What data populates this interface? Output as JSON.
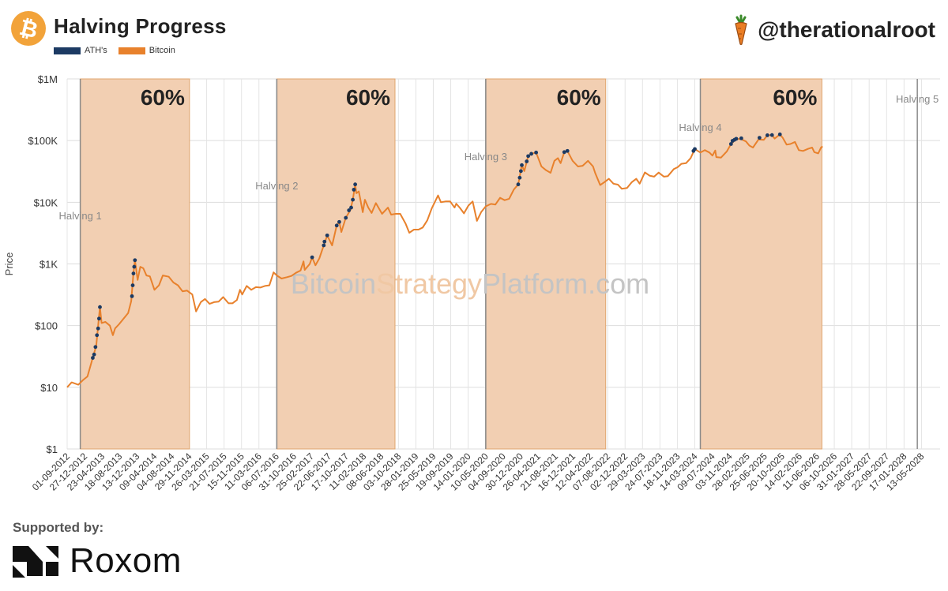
{
  "header": {
    "title": "Halving Progress",
    "logo_glyph": "₿",
    "handle": "@therationalroot"
  },
  "footer": {
    "supported_label": "Supported by:",
    "sponsor_name": "Roxom"
  },
  "colors": {
    "bitcoin": "#e8812c",
    "ath": "#1c3a63",
    "shade": "#f2cfb2",
    "shade_border": "#e0a56e",
    "watermark_gray": "#c4c4c4",
    "watermark_orange": "#f0c8a4"
  },
  "chart_data": {
    "type": "line",
    "title": "",
    "xlabel": "",
    "ylabel": "Price",
    "y_scale": "log",
    "ylim": [
      1,
      1000000
    ],
    "xlim": [
      "2012-09-01",
      "2028-09-15"
    ],
    "yticks": [
      "$1",
      "$10",
      "$100",
      "$1K",
      "$10K",
      "$100K",
      "$1M"
    ],
    "xticks": [
      "01-09-2012",
      "27-12-2012",
      "23-04-2013",
      "18-08-2013",
      "13-12-2013",
      "09-04-2014",
      "04-08-2014",
      "29-11-2014",
      "26-03-2015",
      "21-07-2015",
      "15-11-2015",
      "11-03-2016",
      "06-07-2016",
      "31-10-2016",
      "25-02-2017",
      "22-06-2017",
      "17-10-2017",
      "11-02-2018",
      "08-06-2018",
      "03-10-2018",
      "28-01-2019",
      "25-05-2019",
      "19-09-2019",
      "14-01-2020",
      "10-05-2020",
      "04-09-2020",
      "30-12-2020",
      "26-04-2021",
      "21-08-2021",
      "16-12-2021",
      "12-04-2022",
      "07-08-2022",
      "02-12-2022",
      "29-03-2023",
      "24-07-2023",
      "18-11-2023",
      "14-03-2024",
      "09-07-2024",
      "03-11-2024",
      "28-02-2025",
      "25-06-2025",
      "20-10-2025",
      "14-02-2026",
      "11-06-2026",
      "06-10-2026",
      "31-01-2027",
      "28-05-2027",
      "22-09-2027",
      "17-01-2028",
      "13-05-2028"
    ],
    "legend": [
      "ATH's",
      "Bitcoin"
    ],
    "legend_position": "top-left",
    "grid": true,
    "watermark": {
      "part1": "Bitcoin",
      "part2": "Strategy",
      "part3": "Platform.com"
    },
    "halvings": [
      {
        "label": "Halving 1",
        "date": "2012-11-28"
      },
      {
        "label": "Halving 2",
        "date": "2016-07-09"
      },
      {
        "label": "Halving 3",
        "date": "2020-05-11"
      },
      {
        "label": "Halving 4",
        "date": "2024-04-20"
      },
      {
        "label": "Halving 5",
        "date": "2028-04-15"
      }
    ],
    "shaded_regions": [
      {
        "start": "2012-11-28",
        "end": "2014-12-01",
        "label": "60%"
      },
      {
        "start": "2016-07-09",
        "end": "2018-09-10",
        "label": "60%"
      },
      {
        "start": "2020-05-11",
        "end": "2022-07-25",
        "label": "60%"
      },
      {
        "start": "2024-04-20",
        "end": "2026-07-15",
        "label": "60%"
      }
    ],
    "series": [
      {
        "name": "Bitcoin",
        "points": [
          [
            "2012-09-01",
            10
          ],
          [
            "2012-10-01",
            12
          ],
          [
            "2012-11-15",
            11
          ],
          [
            "2012-12-15",
            13
          ],
          [
            "2013-01-15",
            15
          ],
          [
            "2013-02-20",
            30
          ],
          [
            "2013-03-15",
            47
          ],
          [
            "2013-04-09",
            200
          ],
          [
            "2013-04-20",
            110
          ],
          [
            "2013-05-15",
            115
          ],
          [
            "2013-06-15",
            100
          ],
          [
            "2013-07-05",
            70
          ],
          [
            "2013-07-20",
            90
          ],
          [
            "2013-08-15",
            105
          ],
          [
            "2013-09-15",
            130
          ],
          [
            "2013-10-15",
            160
          ],
          [
            "2013-11-05",
            250
          ],
          [
            "2013-11-20",
            700
          ],
          [
            "2013-11-30",
            1150
          ],
          [
            "2013-12-18",
            550
          ],
          [
            "2014-01-05",
            900
          ],
          [
            "2014-01-25",
            850
          ],
          [
            "2014-02-15",
            650
          ],
          [
            "2014-03-10",
            630
          ],
          [
            "2014-04-10",
            380
          ],
          [
            "2014-05-10",
            450
          ],
          [
            "2014-06-05",
            650
          ],
          [
            "2014-07-15",
            620
          ],
          [
            "2014-08-15",
            500
          ],
          [
            "2014-09-15",
            450
          ],
          [
            "2014-10-15",
            360
          ],
          [
            "2014-11-15",
            370
          ],
          [
            "2014-12-20",
            320
          ],
          [
            "2015-01-14",
            170
          ],
          [
            "2015-02-15",
            240
          ],
          [
            "2015-03-15",
            270
          ],
          [
            "2015-04-15",
            225
          ],
          [
            "2015-05-15",
            240
          ],
          [
            "2015-06-15",
            245
          ],
          [
            "2015-07-15",
            290
          ],
          [
            "2015-08-20",
            230
          ],
          [
            "2015-09-15",
            230
          ],
          [
            "2015-10-15",
            260
          ],
          [
            "2015-11-05",
            380
          ],
          [
            "2015-11-20",
            320
          ],
          [
            "2015-12-20",
            440
          ],
          [
            "2016-01-20",
            380
          ],
          [
            "2016-02-20",
            420
          ],
          [
            "2016-03-20",
            415
          ],
          [
            "2016-04-20",
            440
          ],
          [
            "2016-05-20",
            450
          ],
          [
            "2016-06-17",
            730
          ],
          [
            "2016-07-09",
            650
          ],
          [
            "2016-08-10",
            580
          ],
          [
            "2016-09-15",
            610
          ],
          [
            "2016-10-15",
            640
          ],
          [
            "2016-11-15",
            720
          ],
          [
            "2016-12-15",
            780
          ],
          [
            "2017-01-04",
            1100
          ],
          [
            "2017-01-12",
            800
          ],
          [
            "2017-02-15",
            1000
          ],
          [
            "2017-03-03",
            1280
          ],
          [
            "2017-03-25",
            950
          ],
          [
            "2017-04-20",
            1230
          ],
          [
            "2017-05-20",
            2000
          ],
          [
            "2017-06-12",
            2900
          ],
          [
            "2017-07-15",
            2000
          ],
          [
            "2017-08-15",
            4200
          ],
          [
            "2017-09-01",
            4800
          ],
          [
            "2017-09-15",
            3300
          ],
          [
            "2017-10-15",
            5600
          ],
          [
            "2017-11-15",
            7500
          ],
          [
            "2017-12-01",
            11000
          ],
          [
            "2017-12-17",
            19500
          ],
          [
            "2017-12-25",
            14000
          ],
          [
            "2018-01-10",
            15000
          ],
          [
            "2018-02-06",
            6900
          ],
          [
            "2018-02-20",
            11000
          ],
          [
            "2018-03-15",
            8200
          ],
          [
            "2018-04-06",
            6700
          ],
          [
            "2018-05-05",
            9700
          ],
          [
            "2018-06-15",
            6500
          ],
          [
            "2018-07-25",
            8200
          ],
          [
            "2018-08-15",
            6300
          ],
          [
            "2018-09-15",
            6500
          ],
          [
            "2018-10-15",
            6500
          ],
          [
            "2018-11-20",
            4500
          ],
          [
            "2018-12-15",
            3200
          ],
          [
            "2019-01-15",
            3600
          ],
          [
            "2019-02-15",
            3600
          ],
          [
            "2019-03-15",
            3900
          ],
          [
            "2019-04-15",
            5100
          ],
          [
            "2019-05-15",
            8000
          ],
          [
            "2019-06-26",
            12900
          ],
          [
            "2019-07-15",
            10000
          ],
          [
            "2019-08-15",
            10300
          ],
          [
            "2019-09-15",
            10300
          ],
          [
            "2019-10-15",
            8200
          ],
          [
            "2019-10-26",
            9500
          ],
          [
            "2019-11-20",
            8100
          ],
          [
            "2019-12-17",
            6600
          ],
          [
            "2020-01-15",
            8800
          ],
          [
            "2020-02-13",
            10300
          ],
          [
            "2020-03-13",
            5000
          ],
          [
            "2020-04-10",
            6900
          ],
          [
            "2020-05-11",
            8600
          ],
          [
            "2020-06-15",
            9400
          ],
          [
            "2020-07-15",
            9200
          ],
          [
            "2020-08-15",
            11800
          ],
          [
            "2020-09-15",
            10800
          ],
          [
            "2020-10-15",
            11400
          ],
          [
            "2020-11-15",
            16000
          ],
          [
            "2020-12-15",
            19500
          ],
          [
            "2021-01-08",
            40000
          ],
          [
            "2021-01-25",
            32000
          ],
          [
            "2021-02-20",
            56000
          ],
          [
            "2021-03-13",
            61000
          ],
          [
            "2021-04-14",
            64000
          ],
          [
            "2021-05-20",
            38000
          ],
          [
            "2021-06-20",
            33000
          ],
          [
            "2021-07-20",
            30000
          ],
          [
            "2021-08-15",
            47000
          ],
          [
            "2021-09-07",
            52000
          ],
          [
            "2021-09-25",
            43000
          ],
          [
            "2021-10-20",
            65000
          ],
          [
            "2021-11-10",
            68000
          ],
          [
            "2021-12-15",
            47000
          ],
          [
            "2022-01-20",
            38000
          ],
          [
            "2022-02-20",
            39000
          ],
          [
            "2022-03-28",
            47000
          ],
          [
            "2022-05-01",
            38000
          ],
          [
            "2022-05-15",
            30000
          ],
          [
            "2022-06-18",
            19000
          ],
          [
            "2022-07-15",
            21000
          ],
          [
            "2022-08-15",
            24000
          ],
          [
            "2022-09-15",
            20000
          ],
          [
            "2022-10-15",
            19300
          ],
          [
            "2022-11-10",
            16500
          ],
          [
            "2022-12-15",
            17000
          ],
          [
            "2023-01-15",
            21000
          ],
          [
            "2023-02-15",
            24000
          ],
          [
            "2023-03-10",
            20000
          ],
          [
            "2023-04-14",
            30500
          ],
          [
            "2023-05-15",
            27000
          ],
          [
            "2023-06-15",
            26000
          ],
          [
            "2023-07-15",
            30300
          ],
          [
            "2023-08-20",
            26000
          ],
          [
            "2023-09-15",
            26500
          ],
          [
            "2023-10-25",
            34500
          ],
          [
            "2023-11-20",
            37000
          ],
          [
            "2023-12-15",
            42000
          ],
          [
            "2024-01-15",
            43000
          ],
          [
            "2024-02-15",
            52000
          ],
          [
            "2024-03-14",
            73000
          ],
          [
            "2024-04-20",
            64000
          ],
          [
            "2024-05-20",
            70000
          ],
          [
            "2024-06-20",
            64000
          ],
          [
            "2024-07-10",
            57000
          ],
          [
            "2024-07-29",
            69000
          ],
          [
            "2024-08-05",
            54000
          ],
          [
            "2024-09-06",
            53000
          ],
          [
            "2024-10-15",
            67000
          ],
          [
            "2024-11-12",
            88000
          ],
          [
            "2024-12-17",
            107000
          ],
          [
            "2025-01-20",
            105000
          ],
          [
            "2025-02-20",
            97000
          ],
          [
            "2025-03-15",
            83000
          ],
          [
            "2025-04-08",
            77000
          ],
          [
            "2025-05-15",
            104000
          ],
          [
            "2025-06-20",
            103000
          ],
          [
            "2025-07-14",
            122000
          ],
          [
            "2025-08-14",
            123000
          ],
          [
            "2025-09-01",
            108000
          ],
          [
            "2025-10-06",
            126000
          ],
          [
            "2025-10-25",
            111000
          ],
          [
            "2025-11-20",
            86000
          ],
          [
            "2025-12-15",
            88000
          ],
          [
            "2026-01-15",
            95000
          ],
          [
            "2026-02-10",
            70000
          ],
          [
            "2026-03-10",
            68000
          ],
          [
            "2026-04-15",
            74000
          ],
          [
            "2026-05-10",
            77000
          ],
          [
            "2026-05-25",
            65000
          ],
          [
            "2026-06-20",
            62000
          ],
          [
            "2026-07-10",
            78000
          ],
          [
            "2026-07-20",
            80000
          ]
        ]
      },
      {
        "name": "ATH's",
        "points": [
          [
            "2013-02-20",
            30
          ],
          [
            "2013-03-01",
            34
          ],
          [
            "2013-03-10",
            45
          ],
          [
            "2013-03-20",
            70
          ],
          [
            "2013-03-28",
            90
          ],
          [
            "2013-04-03",
            130
          ],
          [
            "2013-04-09",
            200
          ],
          [
            "2013-11-10",
            300
          ],
          [
            "2013-11-15",
            450
          ],
          [
            "2013-11-20",
            700
          ],
          [
            "2013-11-25",
            900
          ],
          [
            "2013-11-30",
            1150
          ],
          [
            "2017-03-03",
            1280
          ],
          [
            "2017-05-20",
            2000
          ],
          [
            "2017-05-25",
            2300
          ],
          [
            "2017-06-12",
            2900
          ],
          [
            "2017-08-15",
            4200
          ],
          [
            "2017-09-01",
            4800
          ],
          [
            "2017-10-15",
            5600
          ],
          [
            "2017-11-05",
            7400
          ],
          [
            "2017-11-20",
            8200
          ],
          [
            "2017-12-01",
            11000
          ],
          [
            "2017-12-08",
            16000
          ],
          [
            "2017-12-17",
            19500
          ],
          [
            "2020-12-15",
            19500
          ],
          [
            "2020-12-25",
            25000
          ],
          [
            "2021-01-02",
            32000
          ],
          [
            "2021-01-08",
            40000
          ],
          [
            "2021-02-10",
            46000
          ],
          [
            "2021-02-20",
            56000
          ],
          [
            "2021-03-13",
            61000
          ],
          [
            "2021-04-14",
            64000
          ],
          [
            "2021-10-20",
            65000
          ],
          [
            "2021-11-10",
            68000
          ],
          [
            "2024-03-05",
            68000
          ],
          [
            "2024-03-14",
            73000
          ],
          [
            "2024-11-12",
            88000
          ],
          [
            "2024-11-22",
            99000
          ],
          [
            "2024-12-05",
            103000
          ],
          [
            "2024-12-17",
            107000
          ],
          [
            "2025-01-20",
            109000
          ],
          [
            "2025-05-22",
            111000
          ],
          [
            "2025-07-14",
            122000
          ],
          [
            "2025-08-14",
            123000
          ],
          [
            "2025-10-06",
            126000
          ]
        ]
      }
    ]
  }
}
